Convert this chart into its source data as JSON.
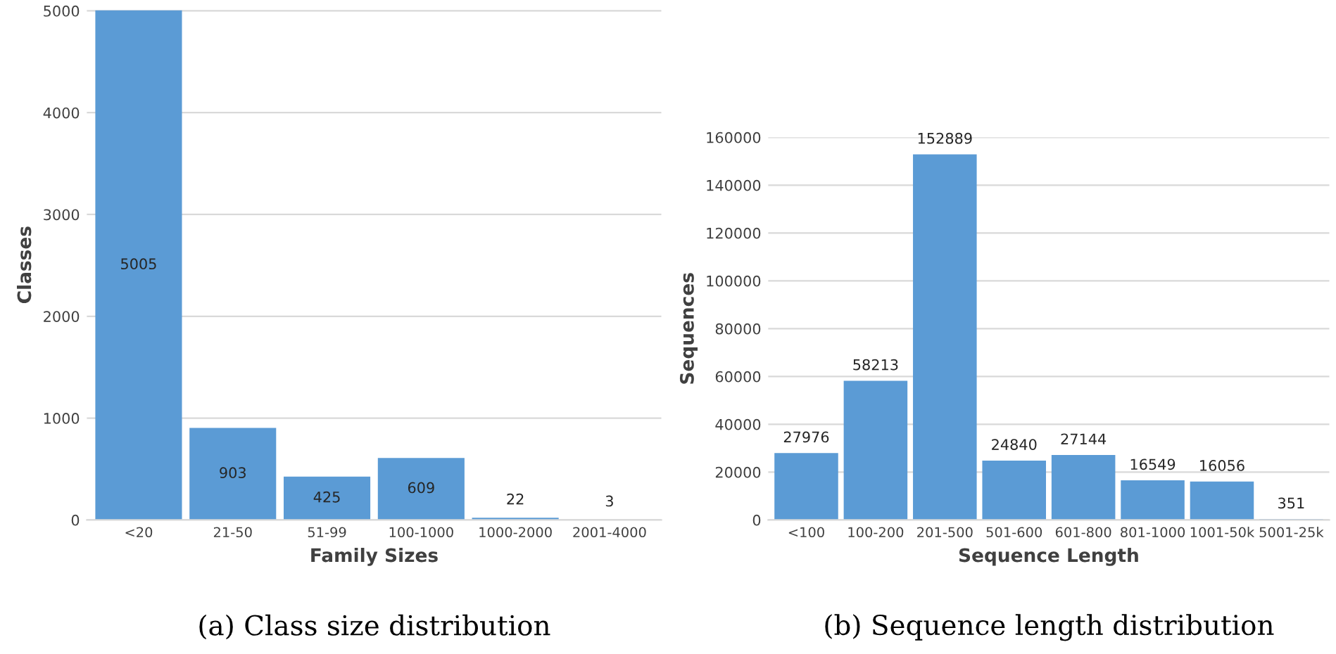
{
  "chart_data": [
    {
      "type": "bar",
      "categories": [
        "<20",
        "21-50",
        "51-99",
        "100-1000",
        "1000-2000",
        "2001-4000"
      ],
      "values": [
        5005,
        903,
        425,
        609,
        22,
        3
      ],
      "color": "#5b9bd5",
      "xlabel": "Family Sizes",
      "ylabel": "Classes",
      "ylim": [
        0,
        5010
      ],
      "yticks": [
        0,
        1000,
        2000,
        3000,
        4000,
        5000
      ],
      "grid": "y",
      "data_labels": true,
      "annotations": [
        "(a) Class size distribution"
      ]
    },
    {
      "type": "bar",
      "categories": [
        "<100",
        "100-200",
        "201-500",
        "501-600",
        "601-800",
        "801-1000",
        "1001-50k",
        "5001-25k"
      ],
      "values": [
        27976,
        58213,
        152889,
        24840,
        27144,
        16549,
        16056,
        351
      ],
      "color": "#5b9bd5",
      "xlabel": "Sequence Length",
      "ylabel": "Sequences",
      "ylim": [
        0,
        160000
      ],
      "yticks": [
        0,
        20000,
        40000,
        60000,
        80000,
        100000,
        120000,
        140000,
        160000
      ],
      "grid": "y",
      "data_labels": true,
      "annotations": [
        "(b) Sequence length distribution"
      ]
    }
  ]
}
